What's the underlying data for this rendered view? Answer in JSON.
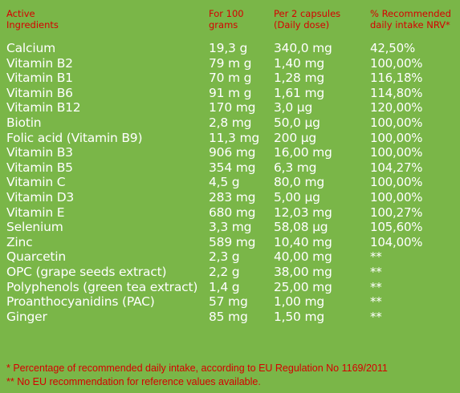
{
  "header": {
    "ingredients": "Active\nIngredients",
    "per100": "For 100\ngrams",
    "perDose": "Per 2 capsules\n(Daily dose)",
    "nrv": "% Recommended\ndaily intake NRV*"
  },
  "rows": [
    {
      "name": "Calcium",
      "per100": "19,3 g",
      "dose": "340,0 mg",
      "nrv": "42,50%"
    },
    {
      "name": "Vitamin B2",
      "per100": "79 m g",
      "dose": "1,40 mg",
      "nrv": "100,00%"
    },
    {
      "name": "Vitamin B1",
      "per100": "70 m g",
      "dose": "1,28 mg",
      "nrv": "116,18%"
    },
    {
      "name": "Vitamin B6",
      "per100": "91 m g",
      "dose": "1,61 mg",
      "nrv": "114,80%"
    },
    {
      "name": "Vitamin B12",
      "per100": "170 mg",
      "dose": "3,0 µg",
      "nrv": "120,00%"
    },
    {
      "name": "Biotin",
      "per100": "2,8 mg",
      "dose": "50,0 µg",
      "nrv": "100,00%"
    },
    {
      "name": "Folic acid (Vitamin B9)",
      "per100": "11,3 mg",
      "dose": "200 µg",
      "nrv": "100,00%"
    },
    {
      "name": "Vitamin B3",
      "per100": "906 mg",
      "dose": "16,00 mg",
      "nrv": "100,00%"
    },
    {
      "name": "Vitamin B5",
      "per100": "354 mg",
      "dose": "6,3 mg",
      "nrv": "104,27%"
    },
    {
      "name": "Vitamin C",
      "per100": "4,5 g",
      "dose": "80,0 mg",
      "nrv": "100,00%"
    },
    {
      "name": "Vitamin D3",
      "per100": "283 mg",
      "dose": "5,00 µg",
      "nrv": "100,00%"
    },
    {
      "name": "Vitamin E",
      "per100": "680 mg",
      "dose": "12,03 mg",
      "nrv": "100,27%"
    },
    {
      "name": "Selenium",
      "per100": "3,3 mg",
      "dose": "58,08 µg",
      "nrv": "105,60%"
    },
    {
      "name": "Zinc",
      "per100": "589 mg",
      "dose": "10,40 mg",
      "nrv": "104,00%"
    },
    {
      "name": "Quarcetin",
      "per100": "2,3 g",
      "dose": "40,00 mg",
      "nrv": "**"
    },
    {
      "name": "OPC (grape seeds extract)",
      "per100": "2,2 g",
      "dose": "38,00 mg",
      "nrv": "**"
    },
    {
      "name": "Polyphenols (green tea extract)",
      "per100": "1,4 g",
      "dose": "25,00 mg",
      "nrv": "**"
    },
    {
      "name": "Proanthocyanidins (PAC)",
      "per100": "57 mg",
      "dose": "1,00 mg",
      "nrv": "**"
    },
    {
      "name": "Ginger",
      "per100": "85 mg",
      "dose": "1,50 mg",
      "nrv": "**"
    }
  ],
  "footer": {
    "note1": "*  Percentage of recommended daily intake, according to EU Regulation No 1169/2011",
    "note2": "** No EU recommendation for reference values available."
  },
  "colors": {
    "background": "#7ab648",
    "header_text": "#d60000",
    "body_text": "#ffffff"
  }
}
